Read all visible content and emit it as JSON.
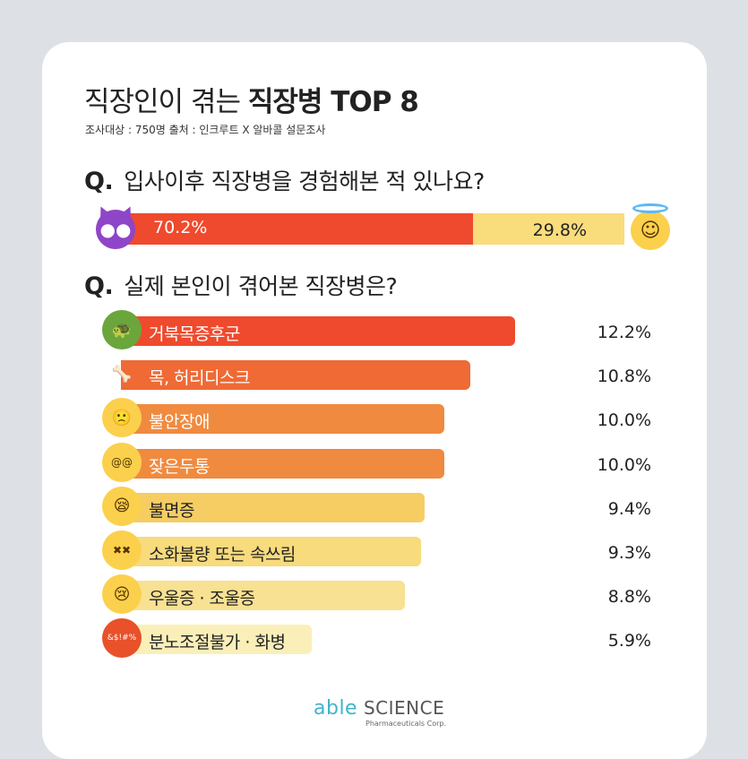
{
  "title": {
    "regular": "직장인이 겪는",
    "bold": "직장병 TOP 8"
  },
  "subtitle": "조사대상 : 750명   출처 : 인크루트 X 알바콜 설문조사",
  "q1": {
    "mark": "Q.",
    "text": "입사이후 직장병을 경험해본 적 있나요?"
  },
  "q2": {
    "mark": "Q.",
    "text": "실제 본인이 겪어본 직장병은?"
  },
  "icons": {
    "left": "devil-face-icon",
    "right": "angel-face-icon"
  },
  "colors": {
    "bg": "#dde1e5",
    "card": "#ffffff",
    "bar1": "#ef4a2d",
    "bar2": "#ef6a35",
    "bar3": "#f08a3f",
    "bar4": "#f08a3f",
    "bar5": "#f5cd63",
    "bar6": "#f7db7c",
    "bar7": "#f8e192",
    "bar8": "#fbefb9",
    "split_left": "#ef4a2d",
    "split_right": "#f9dc7c"
  },
  "chart_data": [
    {
      "type": "bar",
      "orientation": "horizontal-stacked",
      "categories": [
        "Q. 입사이후 직장병을 경험해본 적 있나요?"
      ],
      "series": [
        {
          "values": [
            70.2
          ],
          "label": "70.2%"
        },
        {
          "values": [
            29.8
          ],
          "label": "29.8%"
        }
      ],
      "xlim": [
        0,
        100
      ]
    },
    {
      "type": "bar",
      "orientation": "horizontal",
      "categories": [
        "거북목증후군",
        "목, 허리디스크",
        "불안장애",
        "잦은두통",
        "불면증",
        "소화불량 또는 속쓰림",
        "우울증 · 조울증",
        "분노조절불가 · 화병"
      ],
      "values": [
        12.2,
        10.8,
        10.0,
        10.0,
        9.4,
        9.3,
        8.8,
        5.9
      ],
      "value_labels": [
        "12.2%",
        "10.8%",
        "10.0%",
        "10.0%",
        "9.4%",
        "9.3%",
        "8.8%",
        "5.9%"
      ],
      "icons": [
        "turtle-icon",
        "bone-icon",
        "worried-face-icon",
        "dizzy-face-icon",
        "yawning-face-icon",
        "vomiting-face-icon",
        "crying-face-icon",
        "cursing-face-icon"
      ],
      "icon_glyphs": [
        "🐢",
        "🦴",
        "🙁",
        "@@",
        "😪",
        "✖✖",
        "😢",
        "&$!#%"
      ],
      "xlim": [
        0,
        12.2
      ]
    }
  ],
  "logo": {
    "able": "able",
    "science": "SCIENCE",
    "sub": "Pharmaceuticals Corp."
  }
}
